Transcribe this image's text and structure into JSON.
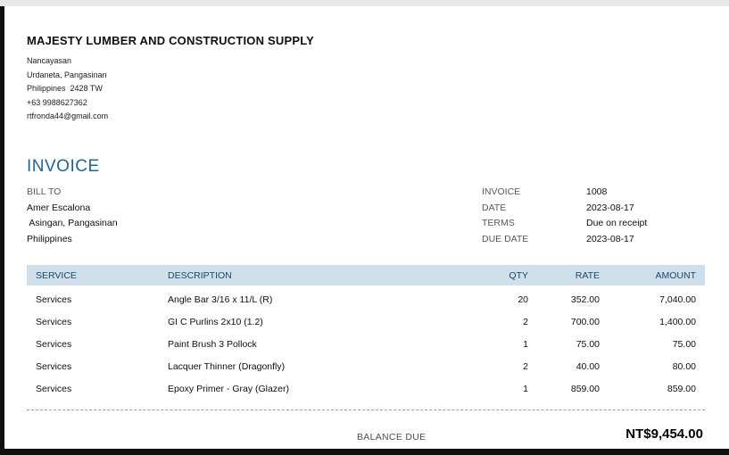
{
  "company": {
    "name": "MAJESTY LUMBER AND CONSTRUCTION SUPPLY",
    "address_lines": [
      "Nancayasan",
      "Urdaneta, Pangasinan",
      "Philippines  2428 TW",
      "+63 9988627362",
      "rtfronda44@gmail.com"
    ]
  },
  "invoice": {
    "title": "INVOICE",
    "bill_to": {
      "label": "BILL TO",
      "lines": [
        "Amer Escalona",
        " Asingan, Pangasinan",
        "Philippines"
      ]
    },
    "meta": [
      {
        "label": "INVOICE",
        "value": "1008"
      },
      {
        "label": "DATE",
        "value": "2023-08-17"
      },
      {
        "label": "TERMS",
        "value": "Due on receipt"
      },
      {
        "label": "DUE DATE",
        "value": "2023-08-17"
      }
    ]
  },
  "table": {
    "columns": [
      "SERVICE",
      "DESCRIPTION",
      "QTY",
      "RATE",
      "AMOUNT"
    ],
    "rows": [
      {
        "service": "Services",
        "description": "Angle Bar 3/16 x 11/L (R)",
        "qty": "20",
        "rate": "352.00",
        "amount": "7,040.00"
      },
      {
        "service": "Services",
        "description": "GI C Purlins 2x10 (1.2)",
        "qty": "2",
        "rate": "700.00",
        "amount": "1,400.00"
      },
      {
        "service": "Services",
        "description": "Paint Brush 3 Pollock",
        "qty": "1",
        "rate": "75.00",
        "amount": "75.00"
      },
      {
        "service": "Services",
        "description": "Lacquer Thinner (Dragonfly)",
        "qty": "2",
        "rate": "40.00",
        "amount": "80.00"
      },
      {
        "service": "Services",
        "description": "Epoxy Primer - Gray (Glazer)",
        "qty": "1",
        "rate": "859.00",
        "amount": "859.00"
      }
    ]
  },
  "summary": {
    "balance_label": "BALANCE DUE",
    "balance_value": "NT$9,454.00"
  },
  "colors": {
    "accent_blue": "#1e6795",
    "table_header_bg": "#cfe0ea",
    "table_header_text": "#17496d",
    "label_gray": "#595959",
    "frame_black": "#0f0f0f",
    "top_strip_gray": "#e8e8e8"
  }
}
